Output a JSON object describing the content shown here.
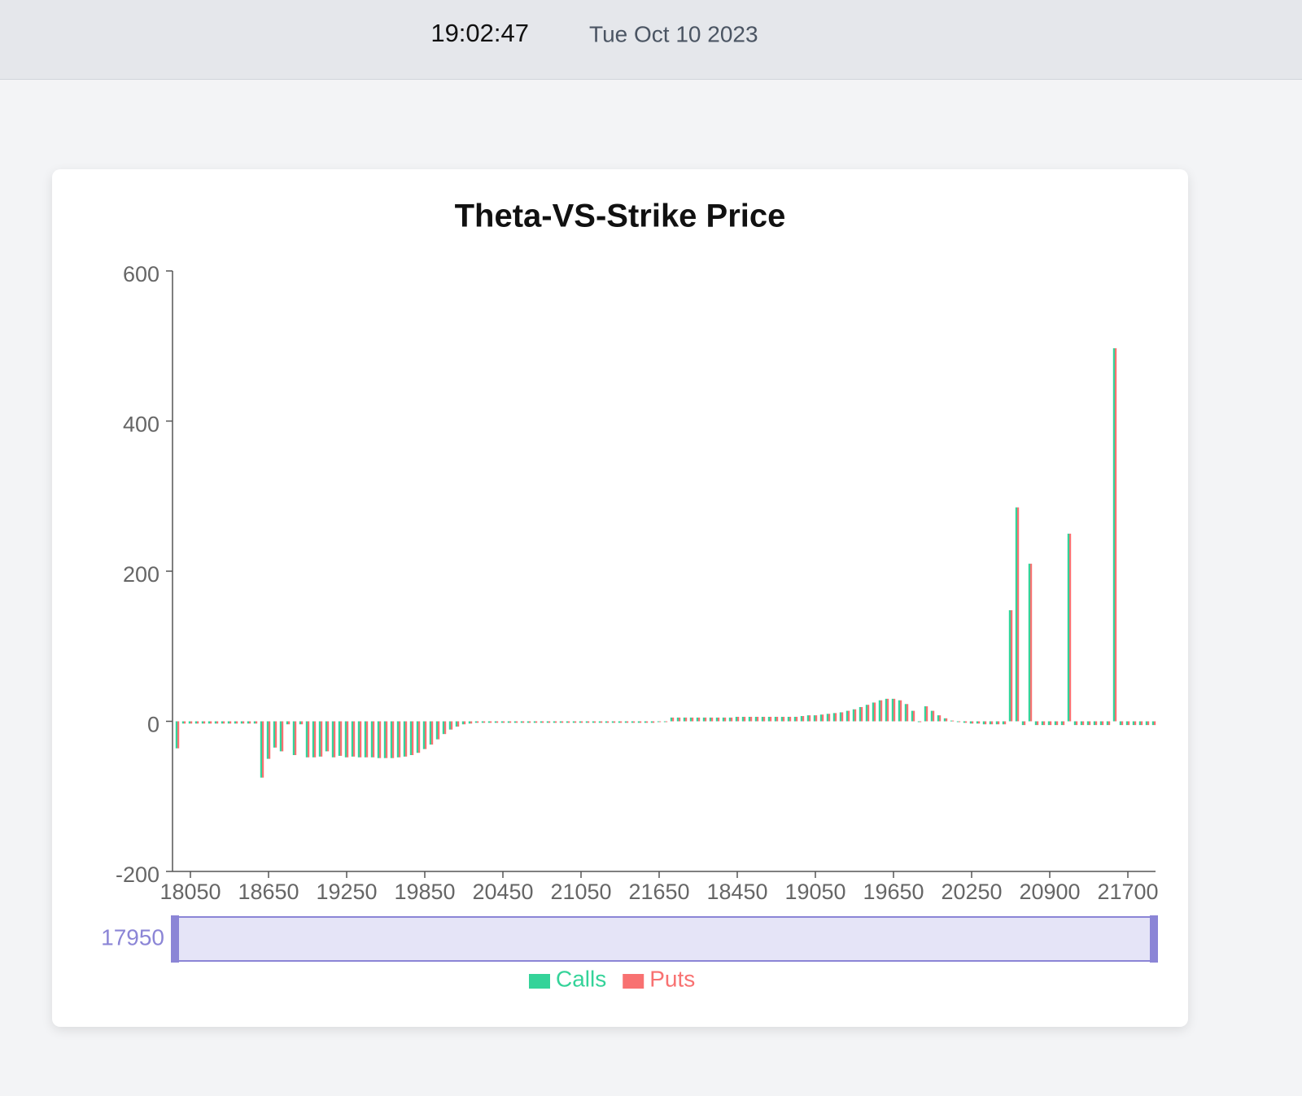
{
  "header": {
    "time": "19:02:47",
    "date": "Tue Oct 10 2023"
  },
  "chart_data": {
    "type": "bar",
    "title": "Theta-VS-Strike Price",
    "categories": [
      17950,
      null,
      18050,
      null,
      null,
      null,
      null,
      null,
      null,
      null,
      null,
      null,
      null,
      null,
      18650,
      null,
      null,
      null,
      null,
      null,
      null,
      null,
      null,
      null,
      null,
      null,
      19250,
      null,
      null,
      null,
      null,
      null,
      null,
      null,
      null,
      null,
      null,
      null,
      19850,
      null,
      null,
      null,
      null,
      null,
      null,
      null,
      null,
      null,
      null,
      null,
      20450,
      null,
      null,
      null,
      null,
      null,
      null,
      null,
      null,
      null,
      null,
      null,
      21050,
      null,
      null,
      null,
      null,
      null,
      null,
      null,
      null,
      null,
      null,
      null,
      21650,
      null,
      null,
      null,
      null,
      null,
      null,
      null,
      null,
      null,
      null,
      null,
      18450,
      null,
      null,
      null,
      null,
      null,
      null,
      null,
      null,
      null,
      null,
      null,
      19050,
      null,
      null,
      null,
      null,
      null,
      null,
      null,
      null,
      null,
      null,
      null,
      19650,
      null,
      null,
      null,
      null,
      null,
      null,
      null,
      null,
      null,
      null,
      null,
      20250,
      null,
      null,
      null,
      null,
      null,
      null,
      null,
      null,
      null,
      null,
      null,
      20900,
      null,
      null,
      null,
      null,
      null,
      null,
      null,
      null,
      null,
      null,
      null,
      21700,
      null,
      null,
      null,
      null
    ],
    "series": [
      {
        "name": "Calls",
        "color": "#34d399",
        "values": [
          -36,
          -3,
          -3,
          -3,
          -3,
          -3,
          -3,
          -3,
          -3,
          -3,
          -3,
          -3,
          -3,
          -75,
          -50,
          -35,
          -40,
          -4,
          -45,
          -4,
          -48,
          -48,
          -47,
          -40,
          -48,
          -46,
          -48,
          -47,
          -48,
          -48,
          -48,
          -49,
          -49,
          -49,
          -48,
          -47,
          -45,
          -42,
          -37,
          -31,
          -24,
          -17,
          -11,
          -7,
          -4,
          -3,
          -2,
          -2,
          -2,
          -2,
          -2,
          -2,
          -2,
          -2,
          -2,
          -2,
          -2,
          -2,
          -2,
          -2,
          -2,
          -2,
          -2,
          -2,
          -2,
          -2,
          -2,
          -2,
          -2,
          -2,
          -2,
          -2,
          -2,
          -2,
          -1,
          -1,
          5,
          5,
          5,
          5,
          5,
          5,
          5,
          5,
          5,
          5,
          6,
          6,
          6,
          6,
          6,
          6,
          6,
          6,
          6,
          6,
          7,
          8,
          8,
          9,
          10,
          11,
          12,
          14,
          16,
          19,
          22,
          25,
          28,
          30,
          30,
          28,
          23,
          14,
          0,
          20,
          14,
          8,
          4,
          1,
          -1,
          -2,
          -3,
          -3,
          -4,
          -4,
          -4,
          -4,
          148,
          285,
          -5,
          210,
          -5,
          -5,
          -5,
          -5,
          -5,
          250,
          -5,
          -5,
          -5,
          -5,
          -5,
          -5,
          497,
          -5,
          -5,
          -5,
          -5,
          -5,
          -5
        ]
      },
      {
        "name": "Puts",
        "color": "#f87171",
        "values": [
          -36,
          -3,
          -3,
          -3,
          -3,
          -3,
          -3,
          -3,
          -3,
          -3,
          -3,
          -3,
          -3,
          -75,
          -50,
          -35,
          -40,
          -4,
          -45,
          -4,
          -48,
          -48,
          -47,
          -40,
          -48,
          -46,
          -48,
          -47,
          -48,
          -48,
          -48,
          -49,
          -49,
          -49,
          -48,
          -47,
          -45,
          -42,
          -37,
          -31,
          -24,
          -17,
          -11,
          -7,
          -4,
          -3,
          -2,
          -2,
          -2,
          -2,
          -2,
          -2,
          -2,
          -2,
          -2,
          -2,
          -2,
          -2,
          -2,
          -2,
          -2,
          -2,
          -2,
          -2,
          -2,
          -2,
          -2,
          -2,
          -2,
          -2,
          -2,
          -2,
          -2,
          -2,
          -1,
          -1,
          5,
          5,
          5,
          5,
          5,
          5,
          5,
          5,
          5,
          5,
          6,
          6,
          6,
          6,
          6,
          6,
          6,
          6,
          6,
          6,
          7,
          8,
          8,
          9,
          10,
          11,
          12,
          14,
          16,
          19,
          22,
          25,
          28,
          30,
          30,
          28,
          23,
          14,
          0,
          20,
          14,
          8,
          4,
          1,
          -1,
          -2,
          -3,
          -3,
          -4,
          -4,
          -4,
          -4,
          148,
          285,
          -5,
          210,
          -5,
          -5,
          -5,
          -5,
          -5,
          250,
          -5,
          -5,
          -5,
          -5,
          -5,
          -5,
          497,
          -5,
          -5,
          -5,
          -5,
          -5,
          -5
        ]
      }
    ],
    "ylim": [
      -200,
      600
    ],
    "yticks": [
      -200,
      0,
      200,
      400,
      600
    ]
  }
}
